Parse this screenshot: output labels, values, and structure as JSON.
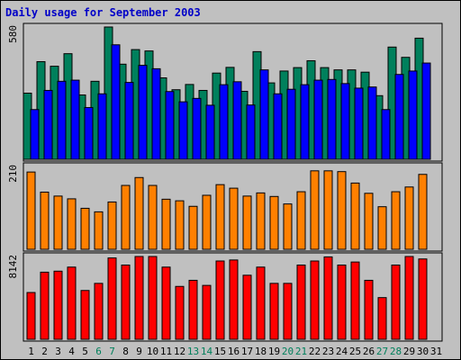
{
  "title": "Daily usage for September 2003",
  "colors": {
    "hits": "#00805c",
    "files": "#0000ff",
    "pages": "#ff8000",
    "kbytes": "#ff0000",
    "weekday_label": "#000000",
    "weekend_label": "#00805c",
    "title": "#0000c8"
  },
  "chart_data": {
    "type": "bar",
    "title": "Daily usage for September 2003",
    "days": [
      "1",
      "2",
      "3",
      "4",
      "5",
      "6",
      "7",
      "8",
      "9",
      "10",
      "11",
      "12",
      "13",
      "14",
      "15",
      "16",
      "17",
      "18",
      "19",
      "20",
      "21",
      "22",
      "23",
      "24",
      "25",
      "26",
      "27",
      "28",
      "29",
      "30",
      "31"
    ],
    "weekend_days": [
      "6",
      "7",
      "13",
      "14",
      "20",
      "21",
      "27",
      "28"
    ],
    "panels": [
      {
        "id": "hits-files",
        "max_label": "580",
        "ymax": 580,
        "series": [
          {
            "key": "hits",
            "color": "#00805c",
            "values": [
              290,
              428,
              408,
              463,
              282,
              342,
              580,
              417,
              481,
              475,
              357,
              305,
              328,
              302,
              378,
              403,
              298,
              472,
              335,
              387,
              402,
              432,
              402,
              392,
              392,
              382,
              279,
              492,
              447,
              531,
              null
            ]
          },
          {
            "key": "files",
            "color": "#0000ff",
            "values": [
              218,
              302,
              342,
              347,
              227,
              287,
              502,
              337,
              412,
              397,
              297,
              252,
              267,
              237,
              327,
              340,
              238,
              392,
              287,
              307,
              327,
              347,
              350,
              332,
              312,
              317,
              218,
              372,
              387,
              422,
              null
            ]
          }
        ]
      },
      {
        "id": "pages",
        "max_label": "210",
        "ymax": 210,
        "series": [
          {
            "key": "pages",
            "color": "#ff8000",
            "values": [
              196,
              145,
              135,
              128,
              104,
              95,
              120,
              162,
              182,
              162,
              127,
              123,
              109,
              137,
              164,
              155,
              135,
              143,
              134,
              115,
              146,
              199,
              199,
              197,
              168,
              142,
              108,
              146,
              158,
              190,
              null
            ]
          }
        ]
      },
      {
        "id": "kbytes",
        "max_label": "8142",
        "ymax": 8142,
        "series": [
          {
            "key": "kbytes",
            "color": "#ff0000",
            "values": [
              4600,
              6600,
              6700,
              7100,
              4800,
              5500,
              8000,
              7300,
              8142,
              8142,
              7100,
              5200,
              5800,
              5300,
              7700,
              7800,
              6300,
              7100,
              5500,
              5500,
              7300,
              7700,
              8100,
              7300,
              7600,
              5800,
              4100,
              7300,
              8142,
              7900,
              null
            ]
          }
        ]
      }
    ]
  }
}
